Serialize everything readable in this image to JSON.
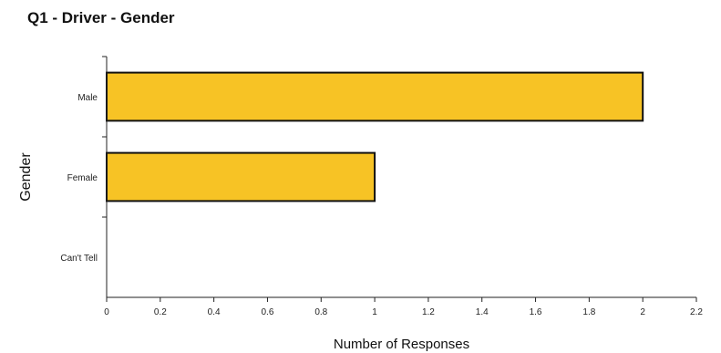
{
  "chart_data": {
    "type": "bar",
    "orientation": "horizontal",
    "title": "Q1 - Driver - Gender",
    "xlabel": "Number of Responses",
    "ylabel": "Gender",
    "categories": [
      "Male",
      "Female",
      "Can't Tell"
    ],
    "values": [
      2,
      1,
      0
    ],
    "xlim": [
      0,
      2.2
    ],
    "xticks": [
      "0",
      "0.2",
      "0.4",
      "0.6",
      "0.8",
      "1",
      "1.2",
      "1.4",
      "1.6",
      "1.8",
      "2",
      "2.2"
    ],
    "grid": false,
    "legend": "none",
    "bar_color": "#F7C325",
    "bar_edge_color": "#111111"
  }
}
